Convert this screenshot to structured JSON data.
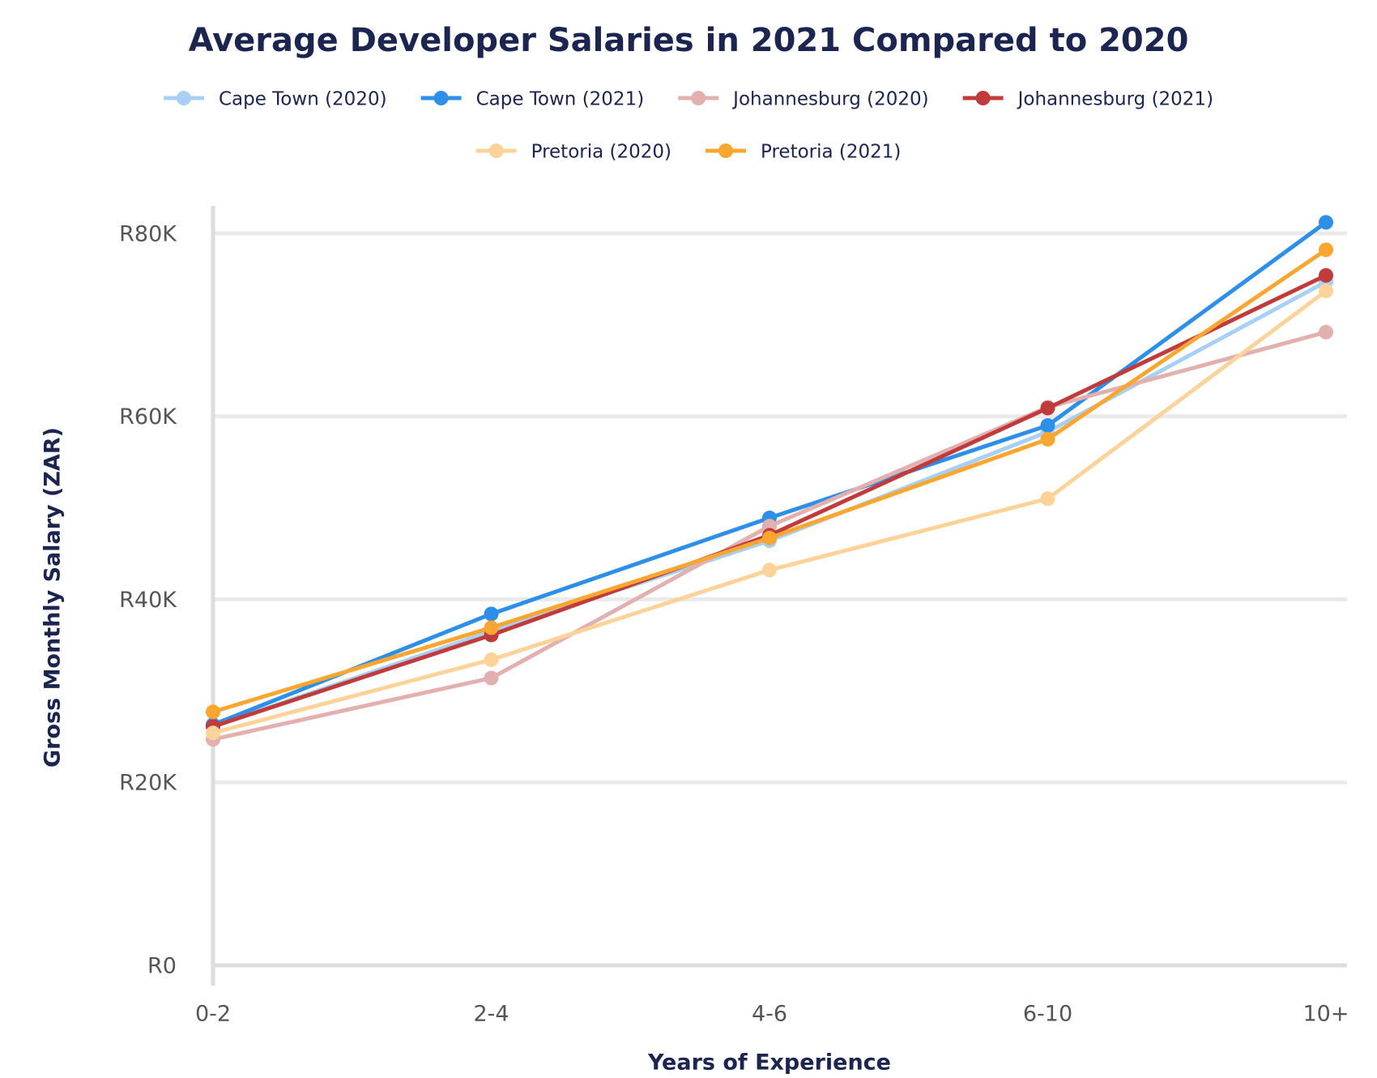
{
  "chart_data": {
    "type": "line",
    "title": "Average Developer Salaries in 2021 Compared to 2020",
    "x_label": "Years of Experience",
    "y_label": "Gross Monthly Salary (ZAR)",
    "categories": [
      "0-2",
      "2-4",
      "4-6",
      "6-10",
      "10+"
    ],
    "series": [
      {
        "name": "Cape Town (2020)",
        "color": "#a8d0f5",
        "values": [
          26100,
          36500,
          46400,
          58300,
          74700
        ]
      },
      {
        "name": "Cape Town (2021)",
        "color": "#2e8fe8",
        "values": [
          26300,
          38400,
          48900,
          59000,
          81200
        ]
      },
      {
        "name": "Johannesburg (2020)",
        "color": "#e3b0b0",
        "values": [
          24700,
          31400,
          48000,
          61000,
          69200
        ]
      },
      {
        "name": "Johannesburg (2021)",
        "color": "#c03b3b",
        "values": [
          26100,
          36100,
          47000,
          60900,
          75400
        ]
      },
      {
        "name": "Pretoria (2020)",
        "color": "#fdd39a",
        "values": [
          25400,
          33400,
          43200,
          51000,
          73700
        ]
      },
      {
        "name": "Pretoria (2021)",
        "color": "#fba631",
        "values": [
          27700,
          36900,
          46700,
          57500,
          78200
        ]
      }
    ],
    "ylim": [
      0,
      83000
    ],
    "yticks": [
      {
        "value": 0,
        "label": "R0"
      },
      {
        "value": 20000,
        "label": "R20K"
      },
      {
        "value": 40000,
        "label": "R40K"
      },
      {
        "value": 60000,
        "label": "R60K"
      },
      {
        "value": 80000,
        "label": "R80K"
      }
    ],
    "grid": true
  }
}
